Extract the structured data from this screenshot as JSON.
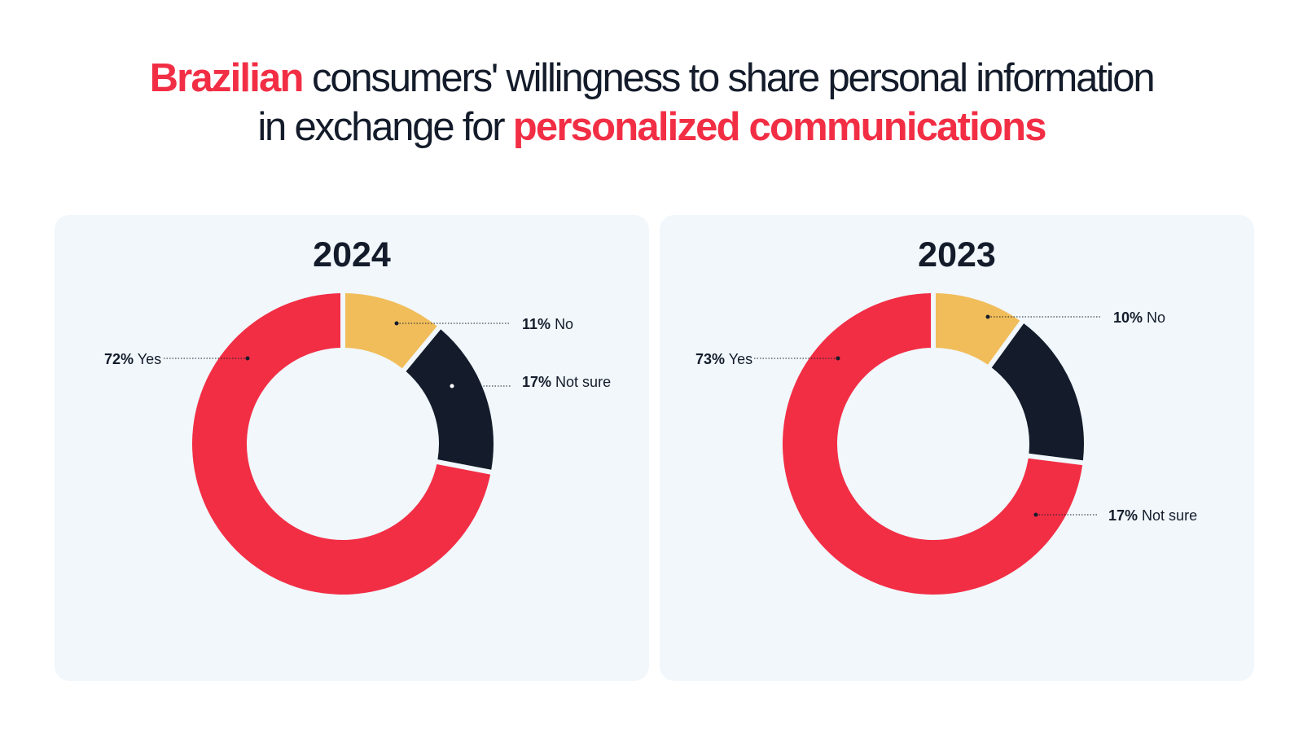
{
  "title": {
    "line1_highlight": "Brazilian",
    "line1_rest": " consumers' willingness to share personal information",
    "line2_start": "in exchange for ",
    "line2_highlight": "personalized communications"
  },
  "colors": {
    "yes": "#f22e45",
    "no": "#f1bd5a",
    "not_sure": "#141c2b",
    "panel_bg": "#f1f7fb",
    "accent": "#f22e45"
  },
  "chart_data": [
    {
      "type": "pie",
      "subtype": "donut",
      "title": "2024",
      "slices": [
        {
          "label": "Yes",
          "value": 72,
          "value_text": "72%"
        },
        {
          "label": "No",
          "value": 11,
          "value_text": "11%"
        },
        {
          "label": "Not sure",
          "value": 17,
          "value_text": "17%"
        }
      ]
    },
    {
      "type": "pie",
      "subtype": "donut",
      "title": "2023",
      "slices": [
        {
          "label": "Yes",
          "value": 73,
          "value_text": "73%"
        },
        {
          "label": "No",
          "value": 10,
          "value_text": "10%"
        },
        {
          "label": "Not sure",
          "value": 17,
          "value_text": "17%"
        }
      ]
    }
  ]
}
